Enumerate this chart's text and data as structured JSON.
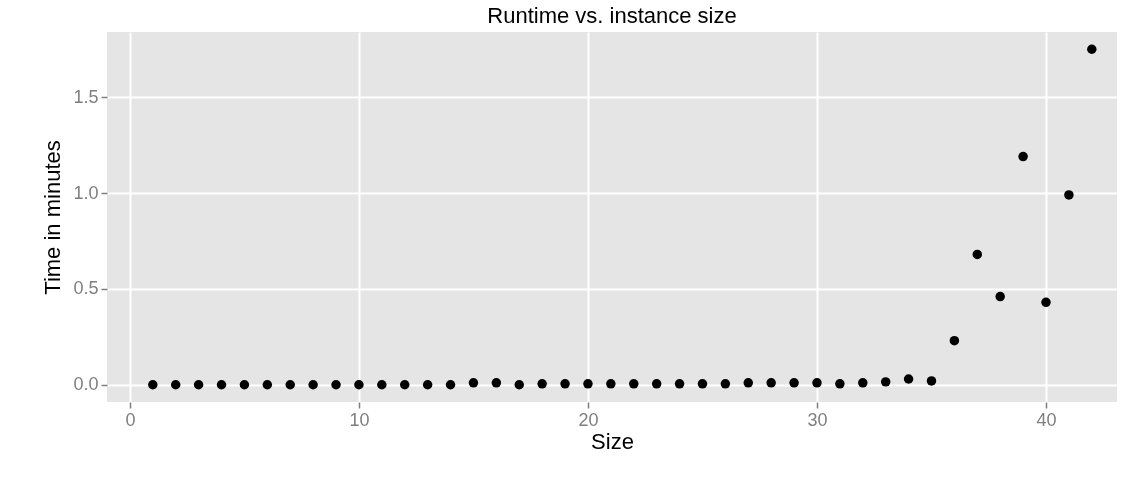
{
  "chart_data": {
    "type": "scatter",
    "title": "Runtime vs. instance size",
    "xlabel": "Size",
    "ylabel": "Time in minutes",
    "x": [
      1,
      2,
      3,
      4,
      5,
      6,
      7,
      8,
      9,
      10,
      11,
      12,
      13,
      14,
      15,
      16,
      17,
      18,
      19,
      20,
      21,
      22,
      23,
      24,
      25,
      26,
      27,
      28,
      29,
      30,
      31,
      32,
      33,
      34,
      35,
      36,
      37,
      38,
      39,
      40,
      41,
      42
    ],
    "series": [
      {
        "color": "#000000",
        "values": [
          0,
          0,
          0,
          0,
          0,
          0,
          0,
          0,
          0,
          0,
          0,
          0,
          0,
          0,
          0.01,
          0.01,
          0,
          0.005,
          0.005,
          0.005,
          0.005,
          0.005,
          0.005,
          0.005,
          0.005,
          0.005,
          0.01,
          0.01,
          0.01,
          0.01,
          0.005,
          0.01,
          0.015,
          0.03,
          0.02,
          0.23,
          0.68,
          0.46,
          1.19,
          0.43,
          0.99,
          1.75
        ]
      }
    ],
    "xlim": [
      -1,
      43.1
    ],
    "ylim": [
      -0.09,
      1.84
    ],
    "xticks": [
      0,
      10,
      20,
      30,
      40
    ],
    "yticks": [
      {
        "value": 0,
        "label": "0.0"
      },
      {
        "value": 0.5,
        "label": "0.5"
      },
      {
        "value": 1,
        "label": "1.0"
      },
      {
        "value": 1.5,
        "label": "1.5"
      }
    ],
    "grid": true,
    "marker": "circle"
  }
}
